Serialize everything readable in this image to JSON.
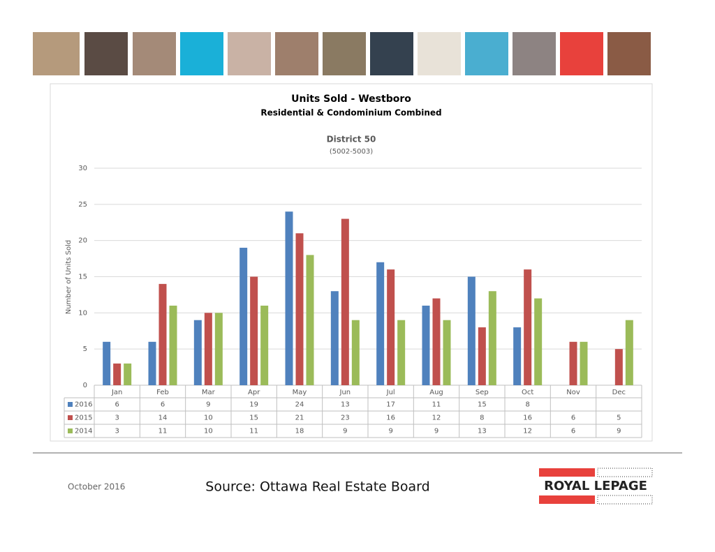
{
  "chart_data": {
    "type": "bar",
    "title": "Units Sold - Westboro",
    "subtitle": "Residential & Condominium Combined",
    "district": "District 50",
    "district_code": "(5002-5003)",
    "y_label": "Number of Units Sold",
    "categories": [
      "Jan",
      "Feb",
      "Mar",
      "Apr",
      "May",
      "Jun",
      "Jul",
      "Aug",
      "Sep",
      "Oct",
      "Nov",
      "Dec"
    ],
    "series": [
      {
        "name": "2016",
        "color": "#4f81bd",
        "values": [
          6,
          6,
          9,
          19,
          24,
          13,
          17,
          11,
          15,
          8,
          null,
          null
        ]
      },
      {
        "name": "2015",
        "color": "#c0504d",
        "values": [
          3,
          14,
          10,
          15,
          21,
          23,
          16,
          12,
          8,
          16,
          6,
          5
        ]
      },
      {
        "name": "2014",
        "color": "#9bbb59",
        "values": [
          3,
          11,
          10,
          11,
          18,
          9,
          9,
          9,
          13,
          12,
          6,
          9
        ]
      }
    ],
    "ylim": [
      0,
      30
    ],
    "yticks": [
      0,
      5,
      10,
      15,
      20,
      25,
      30
    ],
    "grid": true
  },
  "footer": {
    "date": "October 2016",
    "source": "Source: Ottawa Real Estate Board",
    "logo": "ROYAL LEPAGE"
  }
}
